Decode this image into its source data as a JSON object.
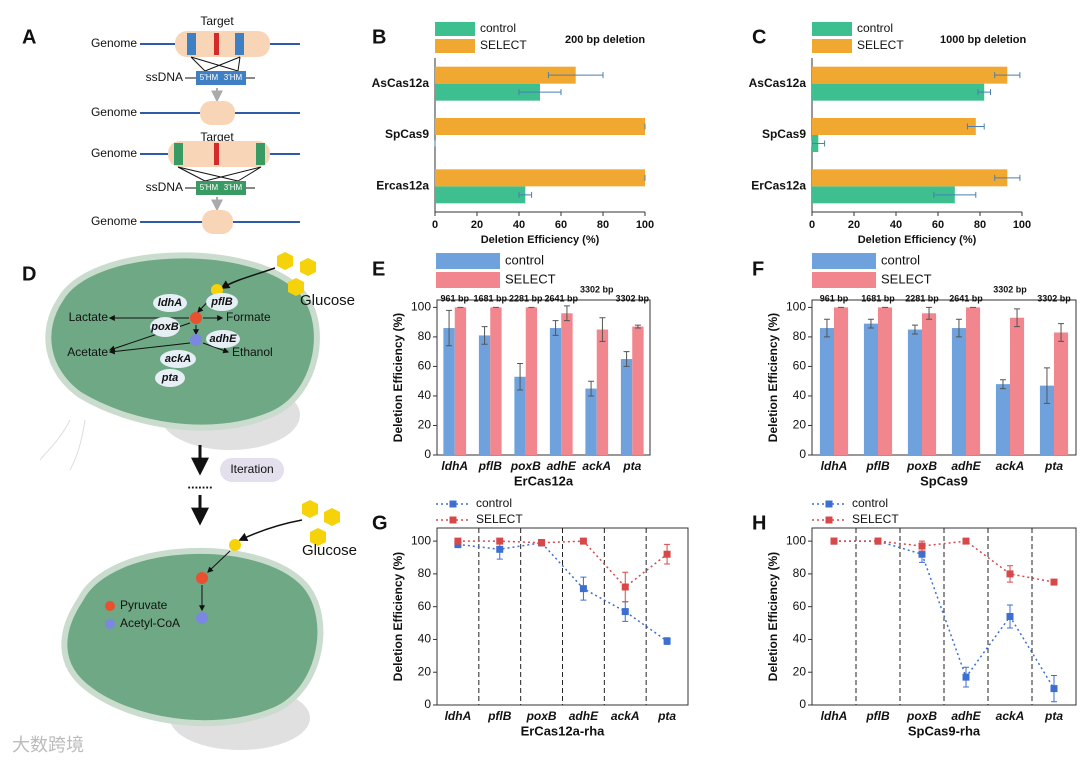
{
  "diagram_a": {
    "panel": "A",
    "targets": [
      "Target",
      "Target"
    ],
    "genome": [
      "Genome",
      "Genome",
      "Genome",
      "Genome"
    ],
    "ssdna": [
      "ssDNA",
      "ssDNA"
    ],
    "arms": [
      "5'HM",
      "3'HM",
      "5'HM",
      "3'HM"
    ]
  },
  "diagram_d": {
    "panel": "D",
    "products": [
      "Lactate",
      "Formate",
      "Acetate",
      "Ethanol"
    ],
    "genes": [
      "ldhA",
      "pflB",
      "poxB",
      "adhE",
      "ackA",
      "pta"
    ],
    "glucose": [
      "Glucose",
      "Glucose"
    ],
    "iteration": "Iteration",
    "legend": [
      "Pyruvate",
      "Acetyl-CoA"
    ]
  },
  "watermark": "大数跨境",
  "chart_data": [
    {
      "type": "hbar",
      "panel": "B",
      "annotation": "200 bp deletion",
      "xlabel": "Deletion Efficiency (%)",
      "categories": [
        "AsCas12a",
        "SpCas9",
        "Ercas12a"
      ],
      "series": [
        {
          "name": "control",
          "color": "#3dbf8f",
          "values": [
            50,
            0,
            43
          ],
          "errors": [
            10,
            0,
            3
          ]
        },
        {
          "name": "SELECT",
          "color": "#f0a830",
          "values": [
            67,
            100,
            100
          ],
          "errors": [
            13,
            0,
            0
          ]
        }
      ],
      "xlim": [
        0,
        100
      ],
      "xticks": [
        0,
        20,
        40,
        60,
        80,
        100
      ]
    },
    {
      "type": "hbar",
      "panel": "C",
      "annotation": "1000 bp deletion",
      "xlabel": "Deletion Efficiency (%)",
      "categories": [
        "AsCas12a",
        "SpCas9",
        "ErCas12a"
      ],
      "series": [
        {
          "name": "control",
          "color": "#3dbf8f",
          "values": [
            82,
            3,
            68
          ],
          "errors": [
            3,
            3,
            10
          ]
        },
        {
          "name": "SELECT",
          "color": "#f0a830",
          "values": [
            93,
            78,
            93
          ],
          "errors": [
            6,
            4,
            6
          ]
        }
      ],
      "xlim": [
        0,
        100
      ],
      "xticks": [
        0,
        20,
        40,
        60,
        80,
        100
      ]
    },
    {
      "type": "bar",
      "panel": "E",
      "xlabel": "ErCas12a",
      "ylabel": "Deletion Efficiency (%)",
      "categories": [
        "ldhA",
        "pflB",
        "poxB",
        "adhE",
        "ackA",
        "pta"
      ],
      "category_annotations": [
        "961 bp",
        "1681 bp",
        "2281 bp",
        "2641 bp",
        "3302 bp",
        "3302 bp"
      ],
      "series": [
        {
          "name": "control",
          "color": "#6fa1dc",
          "values": [
            86,
            81,
            53,
            86,
            45,
            65
          ],
          "errors": [
            12,
            6,
            9,
            5,
            5,
            5
          ]
        },
        {
          "name": "SELECT",
          "color": "#f2868e",
          "values": [
            100,
            100,
            100,
            96,
            85,
            87
          ],
          "errors": [
            0,
            0,
            0,
            5,
            8,
            1
          ]
        }
      ],
      "ylim": [
        0,
        105
      ],
      "yticks": [
        0,
        20,
        40,
        60,
        80,
        100
      ]
    },
    {
      "type": "bar",
      "panel": "F",
      "xlabel": "SpCas9",
      "ylabel": "Deletion Efficiency (%)",
      "categories": [
        "ldhA",
        "pflB",
        "poxB",
        "adhE",
        "ackA",
        "pta"
      ],
      "category_annotations": [
        "961 bp",
        "1681 bp",
        "2281 bp",
        "2641 bp",
        "3302 bp",
        "3302 bp"
      ],
      "series": [
        {
          "name": "control",
          "color": "#6fa1dc",
          "values": [
            86,
            89,
            85,
            86,
            48,
            47
          ],
          "errors": [
            6,
            3,
            3,
            6,
            3,
            12
          ]
        },
        {
          "name": "SELECT",
          "color": "#f2868e",
          "values": [
            100,
            100,
            96,
            100,
            93,
            83
          ],
          "errors": [
            0,
            0,
            4,
            0,
            6,
            6
          ]
        }
      ],
      "ylim": [
        0,
        105
      ],
      "yticks": [
        0,
        20,
        40,
        60,
        80,
        100
      ]
    },
    {
      "type": "line",
      "panel": "G",
      "xlabel": "ErCas12a-rha",
      "ylabel": "Deletion Efficiency (%)",
      "categories": [
        "ldhA",
        "pflB",
        "poxB",
        "adhE",
        "ackA",
        "pta"
      ],
      "series": [
        {
          "name": "control",
          "color": "#3d6fd1",
          "values": [
            98,
            95,
            99,
            71,
            57,
            39
          ],
          "errors": [
            2,
            6,
            2,
            7,
            6,
            2
          ]
        },
        {
          "name": "SELECT",
          "color": "#d94848",
          "values": [
            100,
            100,
            99,
            100,
            72,
            92
          ],
          "errors": [
            1,
            1,
            1,
            1,
            9,
            6
          ]
        }
      ],
      "ylim": [
        0,
        108
      ],
      "yticks": [
        0,
        20,
        40,
        60,
        80,
        100
      ]
    },
    {
      "type": "line",
      "panel": "H",
      "xlabel": "SpCas9-rha",
      "ylabel": "Deletion Efficiency (%)",
      "categories": [
        "ldhA",
        "pflB",
        "poxB",
        "adhE",
        "ackA",
        "pta"
      ],
      "series": [
        {
          "name": "control",
          "color": "#3d6fd1",
          "values": [
            100,
            100,
            92,
            17,
            54,
            10
          ],
          "errors": [
            1,
            1,
            5,
            6,
            7,
            8
          ]
        },
        {
          "name": "SELECT",
          "color": "#d94848",
          "values": [
            100,
            100,
            97,
            100,
            80,
            75
          ],
          "errors": [
            1,
            1,
            3,
            1,
            5,
            1
          ]
        }
      ],
      "ylim": [
        0,
        108
      ],
      "yticks": [
        0,
        20,
        40,
        60,
        80,
        100
      ]
    }
  ]
}
